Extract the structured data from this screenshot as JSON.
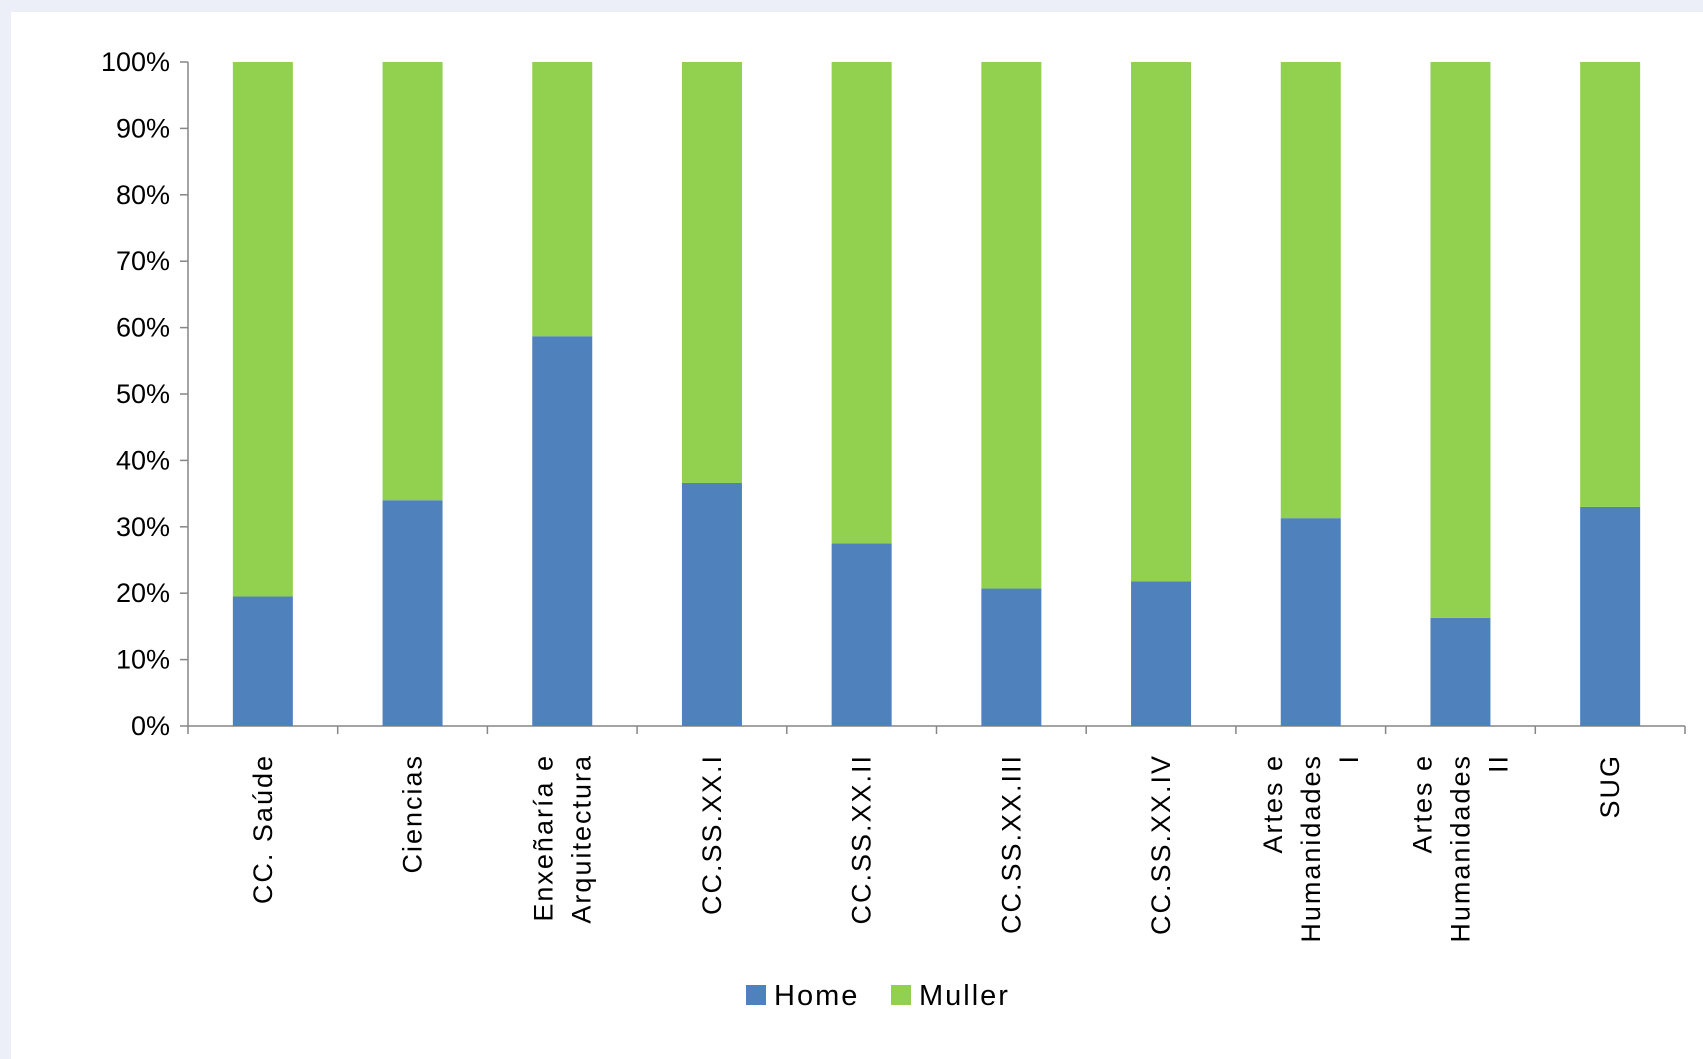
{
  "chart_data": {
    "type": "bar",
    "stacked": true,
    "percent_stacked": true,
    "categories": [
      [
        "CC. Saúde"
      ],
      [
        "Ciencias"
      ],
      [
        "Enxeñaría e",
        "Arquitectura"
      ],
      [
        "CC.SS.XX.I"
      ],
      [
        "CC.SS.XX.II"
      ],
      [
        "CC.SS.XX.III"
      ],
      [
        "CC.SS.XX.IV"
      ],
      [
        "Artes e",
        "Humanidades",
        "I"
      ],
      [
        "Artes e",
        "Humanidades",
        "II"
      ],
      [
        "SUG"
      ]
    ],
    "series": [
      {
        "name": "Home",
        "color": "#4f81bd",
        "values": [
          19.5,
          34,
          58.7,
          36.6,
          27.5,
          20.7,
          21.8,
          31.3,
          16.3,
          33
        ]
      },
      {
        "name": "Muller",
        "color": "#92d050",
        "values": [
          80.5,
          66,
          41.3,
          63.4,
          72.5,
          79.3,
          78.2,
          68.7,
          83.7,
          67
        ]
      }
    ],
    "yticks": [
      "0%",
      "10%",
      "20%",
      "30%",
      "40%",
      "50%",
      "60%",
      "70%",
      "80%",
      "90%",
      "100%"
    ],
    "ylim": [
      0,
      100
    ],
    "legend_position": "bottom",
    "grid": false
  }
}
